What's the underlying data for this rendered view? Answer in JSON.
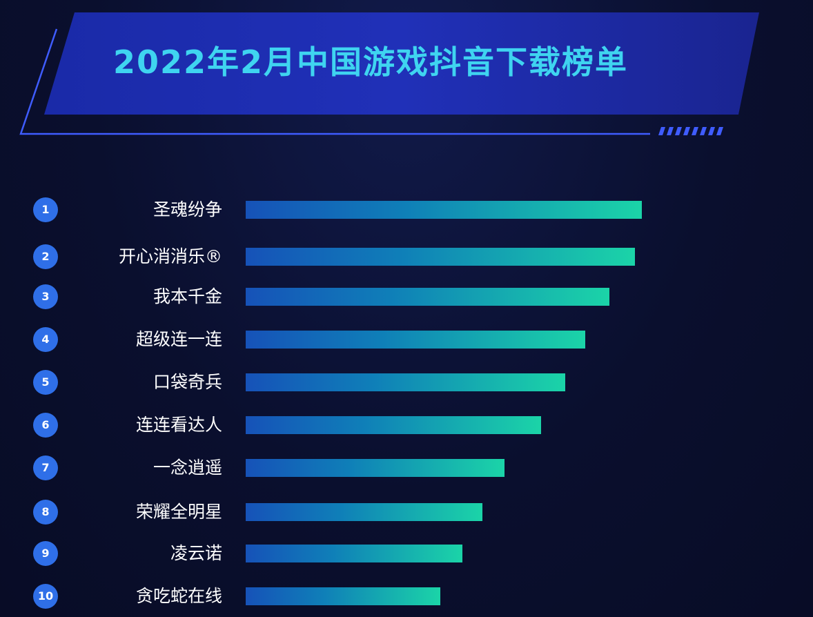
{
  "colors": {
    "background": "#0a0f2e",
    "title": "#3fd4f0",
    "badge": "#2f6fe8",
    "bar_start": "#1652b8",
    "bar_end": "#1bd4a8"
  },
  "chart_data": {
    "type": "bar",
    "orientation": "horizontal",
    "title": "2022年2月中国游戏抖音下载榜单",
    "ranks": [
      "1",
      "2",
      "3",
      "4",
      "5",
      "6",
      "7",
      "8",
      "9",
      "10"
    ],
    "categories": [
      "圣魂纷争",
      "开心消消乐®",
      "我本千金",
      "超级连一连",
      "口袋奇兵",
      "连连看达人",
      "一念逍遥",
      "荣耀全明星",
      "凌云诺",
      "贪吃蛇在线"
    ],
    "values": [
      100,
      98.3,
      91.8,
      85.7,
      80.7,
      74.6,
      65.3,
      59.8,
      54.7,
      49.1
    ],
    "xlim": [
      0,
      100
    ],
    "grid": false,
    "legend": "none"
  }
}
